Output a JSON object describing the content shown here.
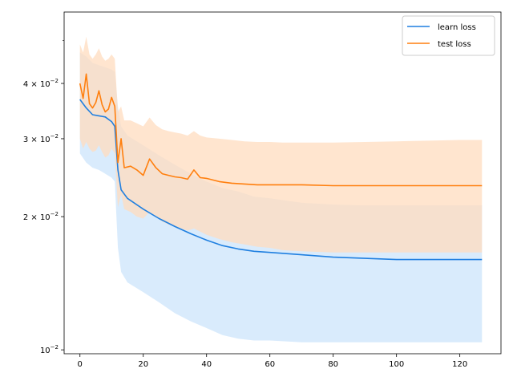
{
  "chart_data": {
    "type": "line",
    "title": "",
    "xlabel": "",
    "ylabel": "",
    "yscale": "log",
    "xlim": [
      -5,
      133
    ],
    "ylim": [
      0.0098,
      0.058
    ],
    "grid": false,
    "legend_placement": "top-right",
    "x_ticks": [
      0,
      20,
      40,
      60,
      80,
      100,
      120
    ],
    "x_tick_labels": [
      "0",
      "20",
      "40",
      "60",
      "80",
      "100",
      "120"
    ],
    "y_ticks": [
      0.01,
      0.02,
      0.03,
      0.04
    ],
    "y_tick_labels": [
      {
        "base": "10",
        "exp": "−2",
        "coef": ""
      },
      {
        "base": "10",
        "exp": "−2",
        "coef": "2 × "
      },
      {
        "base": "10",
        "exp": "−2",
        "coef": "3 × "
      },
      {
        "base": "10",
        "exp": "−2",
        "coef": "4 × "
      }
    ],
    "series": [
      {
        "name": "learn loss",
        "color": "#1f7fe0",
        "band_color": "#cce4fb",
        "x": [
          0,
          2,
          4,
          6,
          8,
          10,
          11,
          12,
          13,
          15,
          20,
          25,
          30,
          35,
          40,
          45,
          50,
          55,
          60,
          70,
          80,
          90,
          100,
          110,
          120,
          127
        ],
        "mean": [
          0.0368,
          0.0352,
          0.034,
          0.0338,
          0.0336,
          0.0328,
          0.032,
          0.0255,
          0.023,
          0.022,
          0.0208,
          0.0198,
          0.019,
          0.0183,
          0.0177,
          0.0172,
          0.0169,
          0.0167,
          0.0166,
          0.0164,
          0.0162,
          0.0161,
          0.016,
          0.016,
          0.016,
          0.016
        ],
        "lower": [
          0.0278,
          0.0265,
          0.0258,
          0.0255,
          0.025,
          0.0245,
          0.024,
          0.017,
          0.015,
          0.0142,
          0.0135,
          0.0128,
          0.0121,
          0.0116,
          0.0112,
          0.0108,
          0.0106,
          0.0105,
          0.0105,
          0.0104,
          0.0104,
          0.0104,
          0.0104,
          0.0104,
          0.0104,
          0.0104
        ],
        "upper": [
          0.047,
          0.046,
          0.0445,
          0.044,
          0.0435,
          0.043,
          0.0425,
          0.0355,
          0.032,
          0.0305,
          0.029,
          0.0275,
          0.0262,
          0.025,
          0.024,
          0.0232,
          0.0228,
          0.0222,
          0.022,
          0.0215,
          0.0213,
          0.0212,
          0.0212,
          0.0212,
          0.0212,
          0.0212
        ]
      },
      {
        "name": "test loss",
        "color": "#ff7f0e",
        "band_color": "#ffdcbf",
        "x": [
          0,
          1,
          2,
          3,
          4,
          5,
          6,
          7,
          8,
          9,
          10,
          11,
          12,
          13,
          14,
          16,
          18,
          20,
          22,
          24,
          26,
          28,
          30,
          32,
          34,
          36,
          38,
          40,
          44,
          48,
          52,
          56,
          60,
          64,
          70,
          80,
          90,
          100,
          110,
          120,
          127
        ],
        "mean": [
          0.04,
          0.037,
          0.042,
          0.036,
          0.0352,
          0.0362,
          0.0385,
          0.0358,
          0.0345,
          0.035,
          0.0372,
          0.0355,
          0.0265,
          0.03,
          0.0258,
          0.026,
          0.0255,
          0.0248,
          0.027,
          0.0258,
          0.025,
          0.0248,
          0.0246,
          0.0245,
          0.0243,
          0.0255,
          0.0245,
          0.0244,
          0.024,
          0.0238,
          0.0237,
          0.0236,
          0.0236,
          0.0236,
          0.0236,
          0.0235,
          0.0235,
          0.0235,
          0.0235,
          0.0235,
          0.0235
        ],
        "lower": [
          0.03,
          0.0285,
          0.0295,
          0.0285,
          0.028,
          0.0282,
          0.029,
          0.028,
          0.0272,
          0.0275,
          0.0285,
          0.0278,
          0.021,
          0.0225,
          0.0208,
          0.0205,
          0.02,
          0.0198,
          0.0205,
          0.02,
          0.0195,
          0.0192,
          0.019,
          0.0188,
          0.0186,
          0.0188,
          0.0185,
          0.0182,
          0.0178,
          0.0175,
          0.0173,
          0.0171,
          0.017,
          0.0168,
          0.0167,
          0.0166,
          0.0166,
          0.0166,
          0.0166,
          0.0166,
          0.0166
        ],
        "upper": [
          0.049,
          0.047,
          0.051,
          0.0465,
          0.0455,
          0.0465,
          0.048,
          0.046,
          0.045,
          0.0455,
          0.0465,
          0.0455,
          0.0345,
          0.0355,
          0.033,
          0.033,
          0.0325,
          0.032,
          0.0335,
          0.0322,
          0.0315,
          0.0312,
          0.031,
          0.0308,
          0.0305,
          0.0312,
          0.0305,
          0.0302,
          0.03,
          0.0298,
          0.0296,
          0.0295,
          0.0295,
          0.0294,
          0.0294,
          0.0294,
          0.0295,
          0.0296,
          0.0297,
          0.0298,
          0.0298
        ]
      }
    ]
  }
}
